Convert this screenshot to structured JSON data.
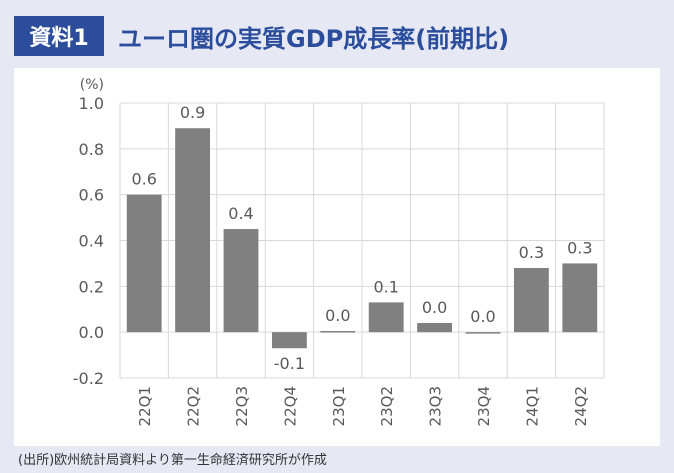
{
  "header": {
    "badge": "資料1",
    "title": "ユーロ圏の実質GDP成長率(前期比)"
  },
  "source": "(出所)欧州統計局資料より第一生命経済研究所が作成",
  "colors": {
    "accent": "#2b4d9c",
    "background": "#e6e8f4",
    "bar": "#808080",
    "grid": "#d9d9d9",
    "text": "#595959"
  },
  "chart_data": {
    "type": "bar",
    "unit_label": "(%)",
    "categories": [
      "22Q1",
      "22Q2",
      "22Q3",
      "22Q4",
      "23Q1",
      "23Q2",
      "23Q3",
      "23Q4",
      "24Q1",
      "24Q2"
    ],
    "values": [
      0.6,
      0.89,
      0.45,
      -0.07,
      0.005,
      0.13,
      0.04,
      0.0,
      0.28,
      0.3
    ],
    "data_labels": [
      "0.6",
      "0.9",
      "0.4",
      "-0.1",
      "0.0",
      "0.1",
      "0.0",
      "0.0",
      "0.3",
      "0.3"
    ],
    "ylim": [
      -0.2,
      1.0
    ],
    "yticks": [
      -0.2,
      0.0,
      0.2,
      0.4,
      0.6,
      0.8,
      1.0
    ],
    "ytick_labels": [
      "-0.2",
      "0.0",
      "0.2",
      "0.4",
      "0.6",
      "0.8",
      "1.0"
    ],
    "grid": true,
    "legend": "none"
  }
}
